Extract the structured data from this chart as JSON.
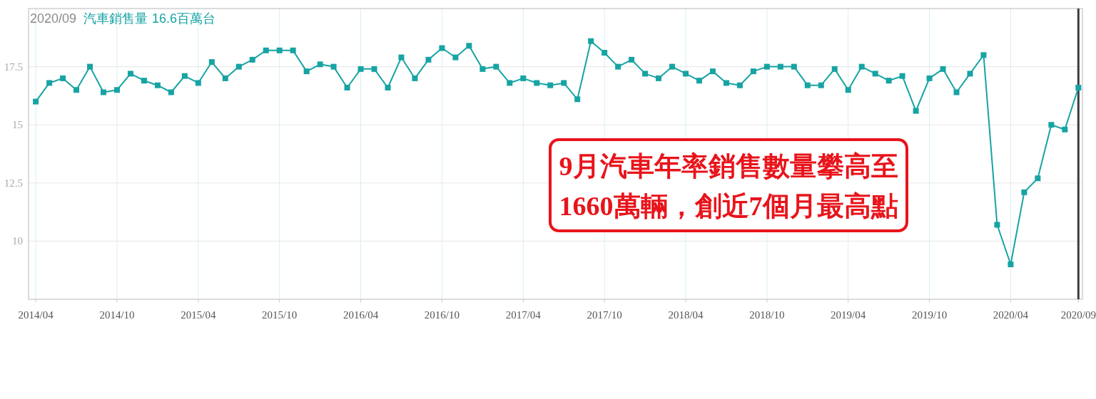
{
  "chart_data": {
    "type": "line",
    "title": "2020/09",
    "x": [
      "2014-04",
      "2014-05",
      "2014-06",
      "2014-07",
      "2014-08",
      "2014-09",
      "2014-10",
      "2014-11",
      "2014-12",
      "2015-01",
      "2015-02",
      "2015-03",
      "2015-04",
      "2015-05",
      "2015-06",
      "2015-07",
      "2015-08",
      "2015-09",
      "2015-10",
      "2015-11",
      "2015-12",
      "2016-01",
      "2016-02",
      "2016-03",
      "2016-04",
      "2016-05",
      "2016-06",
      "2016-07",
      "2016-08",
      "2016-09",
      "2016-10",
      "2016-11",
      "2016-12",
      "2017-01",
      "2017-02",
      "2017-03",
      "2017-04",
      "2017-05",
      "2017-06",
      "2017-07",
      "2017-08",
      "2017-09",
      "2017-10",
      "2017-11",
      "2017-12",
      "2018-01",
      "2018-02",
      "2018-03",
      "2018-04",
      "2018-05",
      "2018-06",
      "2018-07",
      "2018-08",
      "2018-09",
      "2018-10",
      "2018-11",
      "2018-12",
      "2019-01",
      "2019-02",
      "2019-03",
      "2019-04",
      "2019-05",
      "2019-06",
      "2019-07",
      "2019-08",
      "2019-09",
      "2019-10",
      "2019-11",
      "2019-12",
      "2020-01",
      "2020-02",
      "2020-03",
      "2020-04",
      "2020-05",
      "2020-06",
      "2020-07",
      "2020-08",
      "2020-09"
    ],
    "series": [
      {
        "name": "汽車銷售量",
        "color": "#17a3a3",
        "values": [
          16.0,
          16.8,
          17.0,
          16.5,
          17.5,
          16.4,
          16.5,
          17.2,
          16.9,
          16.7,
          16.4,
          17.1,
          16.8,
          17.7,
          17.0,
          17.5,
          17.8,
          18.2,
          18.2,
          18.2,
          17.3,
          17.6,
          17.5,
          16.6,
          17.4,
          17.4,
          16.6,
          17.9,
          17.0,
          17.8,
          18.3,
          17.9,
          18.4,
          17.4,
          17.5,
          16.8,
          17.0,
          16.8,
          16.7,
          16.8,
          16.1,
          18.6,
          18.1,
          17.5,
          17.8,
          17.2,
          17.0,
          17.5,
          17.2,
          16.9,
          17.3,
          16.8,
          16.7,
          17.3,
          17.5,
          17.5,
          17.5,
          16.7,
          16.7,
          17.4,
          16.5,
          17.5,
          17.2,
          16.9,
          17.1,
          15.6,
          17.0,
          17.4,
          16.4,
          17.2,
          18.0,
          10.7,
          9.0,
          12.1,
          12.7,
          15.0,
          14.8,
          16.6
        ]
      }
    ],
    "xlim": [
      "2014-03-15",
      "2020-09-10"
    ],
    "xticks": [
      {
        "value": "2014-04",
        "label": "2014/04"
      },
      {
        "value": "2014-10",
        "label": "2014/10"
      },
      {
        "value": "2015-04",
        "label": "2015/04"
      },
      {
        "value": "2015-10",
        "label": "2015/10"
      },
      {
        "value": "2016-04",
        "label": "2016/04"
      },
      {
        "value": "2016-10",
        "label": "2016/10"
      },
      {
        "value": "2017-04",
        "label": "2017/04"
      },
      {
        "value": "2017-10",
        "label": "2017/10"
      },
      {
        "value": "2018-04",
        "label": "2018/04"
      },
      {
        "value": "2018-10",
        "label": "2018/10"
      },
      {
        "value": "2019-04",
        "label": "2019/04"
      },
      {
        "value": "2019-10",
        "label": "2019/10"
      },
      {
        "value": "2020-04",
        "label": "2020/04"
      },
      {
        "value": "2020-09",
        "label": "2020/09"
      }
    ],
    "ylim": [
      7.5,
      20
    ],
    "yticks": [
      10,
      12.5,
      15,
      17.5
    ],
    "grid": true,
    "marker": "square",
    "line_style": "solid",
    "ref_lines": [
      {
        "axis": "x",
        "value": "2020-09",
        "color": "#3a3f44"
      }
    ],
    "annotations": [
      "16.6百萬台",
      "9月汽車年率銷售數量攀高至",
      "1660萬輛，創近7個月最高點"
    ]
  }
}
